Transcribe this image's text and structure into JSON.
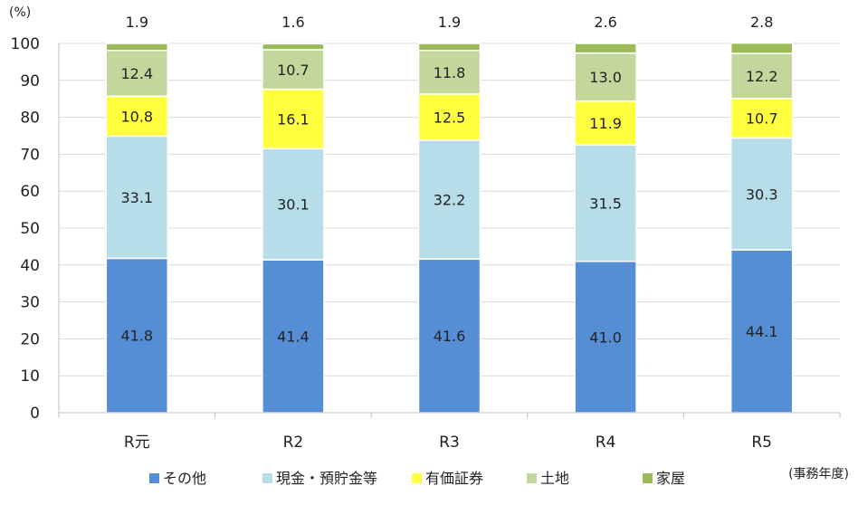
{
  "chart_data": {
    "type": "bar",
    "stacked": true,
    "unit_label": "(%)",
    "xlabel": "(事務年度)",
    "ylim": [
      0,
      100
    ],
    "y_ticks": [
      0,
      10,
      20,
      30,
      40,
      50,
      60,
      70,
      80,
      90,
      100
    ],
    "grid": true,
    "legend_position": "bottom",
    "categories": [
      "R元",
      "R2",
      "R3",
      "R4",
      "R5"
    ],
    "series": [
      {
        "name": "その他",
        "color": "#558ed5",
        "values": [
          41.8,
          41.4,
          41.6,
          41.0,
          44.1
        ],
        "labels": [
          "41.8",
          "41.4",
          "41.6",
          "41.0",
          "44.1"
        ]
      },
      {
        "name": "現金・預貯金等",
        "color": "#b7dde8",
        "values": [
          33.1,
          30.1,
          32.2,
          31.5,
          30.3
        ],
        "labels": [
          "33.1",
          "30.1",
          "32.2",
          "31.5",
          "30.3"
        ]
      },
      {
        "name": "有価証券",
        "color": "#ffff40",
        "values": [
          10.8,
          16.1,
          12.5,
          11.9,
          10.7
        ],
        "labels": [
          "10.8",
          "16.1",
          "12.5",
          "11.9",
          "10.7"
        ]
      },
      {
        "name": "土地",
        "color": "#c3d69b",
        "values": [
          12.4,
          10.7,
          11.8,
          13.0,
          12.2
        ],
        "labels": [
          "12.4",
          "10.7",
          "11.8",
          "13.0",
          "12.2"
        ]
      },
      {
        "name": "家屋",
        "color": "#9bbb59",
        "values": [
          1.9,
          1.6,
          1.9,
          2.6,
          2.8
        ],
        "labels": [
          "1.9",
          "1.6",
          "1.9",
          "2.6",
          "2.8"
        ]
      }
    ]
  }
}
